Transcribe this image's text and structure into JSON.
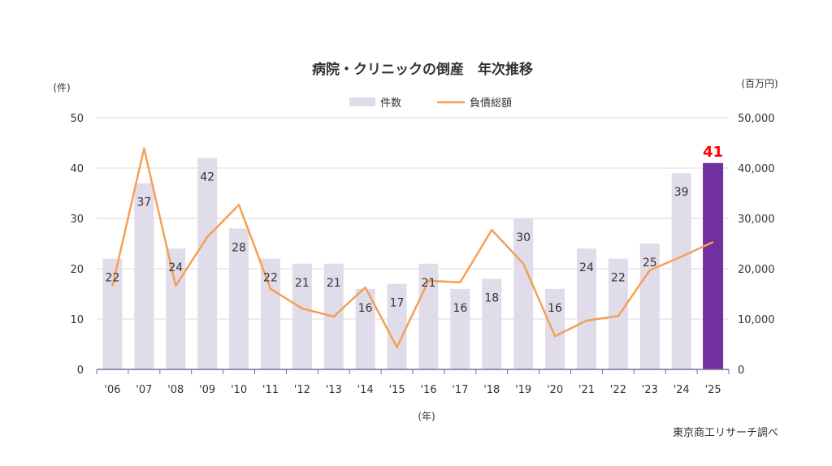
{
  "chart_data": {
    "type": "bar+line",
    "title": "病院・クリニックの倒産　年次推移",
    "ylabel_left": "(件)",
    "ylabel_right": "(百万円)",
    "xlabel": "(年)",
    "source": "東京商工リサーチ調べ",
    "categories": [
      "'06",
      "'07",
      "'08",
      "'09",
      "'10",
      "'11",
      "'12",
      "'13",
      "'14",
      "'15",
      "'16",
      "'17",
      "'18",
      "'19",
      "'20",
      "'21",
      "'22",
      "'23",
      "'24",
      "'25"
    ],
    "ylim_left": [
      0,
      50
    ],
    "yticks_left": [
      "0",
      "10",
      "20",
      "30",
      "40",
      "50"
    ],
    "ylim_right": [
      0,
      50000
    ],
    "yticks_right": [
      "0",
      "10,000",
      "20,000",
      "30,000",
      "40,000",
      "50,000"
    ],
    "grid": true,
    "legend_position": "top-center",
    "series": [
      {
        "name": "件数",
        "type": "bar",
        "axis": "left",
        "color": "#e1dce9",
        "highlight_color": "#7030a0",
        "highlight_label_color": "#ff0000",
        "values": [
          22,
          37,
          24,
          42,
          28,
          22,
          21,
          21,
          16,
          17,
          21,
          16,
          18,
          30,
          16,
          24,
          22,
          25,
          39,
          41
        ]
      },
      {
        "name": "負債総額",
        "type": "line",
        "axis": "right",
        "color": "#f4a055",
        "values": [
          16600,
          43900,
          16600,
          26300,
          32700,
          16000,
          12100,
          10500,
          16300,
          4400,
          17600,
          17300,
          27700,
          21000,
          6600,
          9700,
          10600,
          19700,
          22400,
          25300
        ]
      }
    ]
  }
}
